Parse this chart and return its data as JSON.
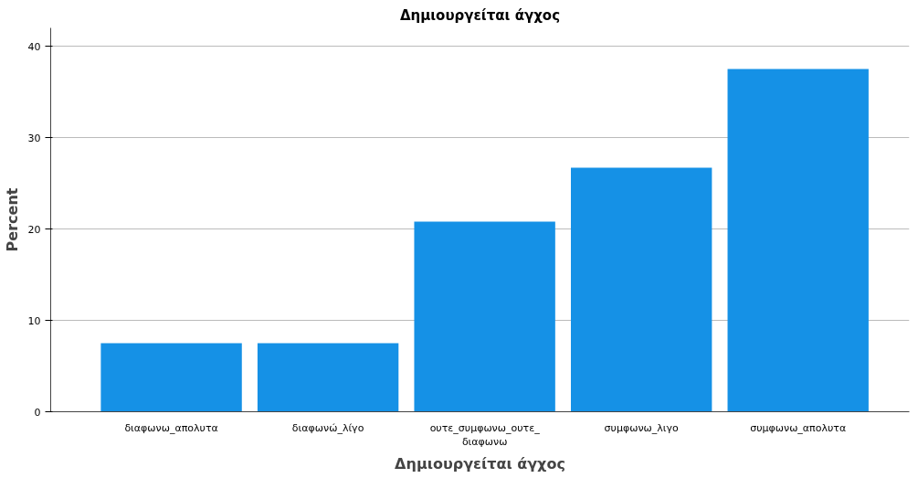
{
  "chart_data": {
    "type": "bar",
    "title": "Δημιουργείται άγχος",
    "xlabel": "Δημιουργείται άγχος",
    "ylabel": "Percent",
    "categories": [
      "διαφωνω_απολυτα",
      "διαφωνώ_λίγο",
      "ουτε_συμφωνω_ουτε_διαφωνω",
      "συμφωνω_λιγο",
      "συμφωνω_απολυτα"
    ],
    "values": [
      7.5,
      7.5,
      20.8,
      26.7,
      37.5
    ],
    "color": "#1591e6",
    "ylim": [
      0,
      42
    ],
    "yticks": [
      0,
      10,
      20,
      30,
      40
    ],
    "grid": "y"
  }
}
